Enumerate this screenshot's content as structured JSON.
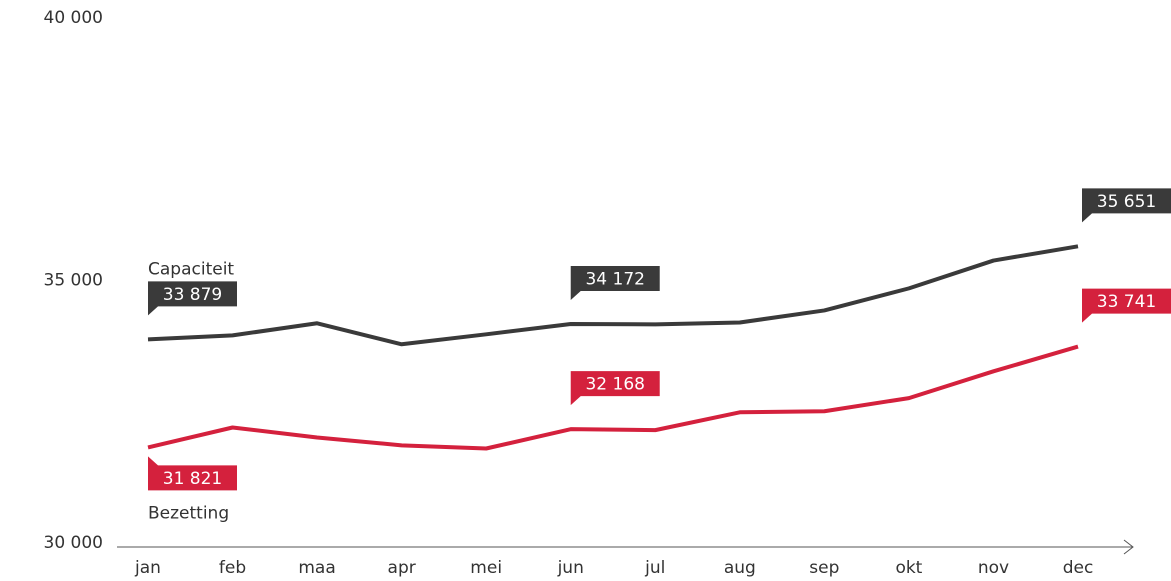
{
  "chart_data": {
    "type": "line",
    "categories": [
      "jan",
      "feb",
      "maa",
      "apr",
      "mei",
      "jun",
      "jul",
      "aug",
      "sep",
      "okt",
      "nov",
      "dec"
    ],
    "series": [
      {
        "name": "Capaciteit",
        "color": "#3a3a3a",
        "values": [
          33879,
          33955,
          34185,
          33785,
          33975,
          34172,
          34165,
          34200,
          34430,
          34850,
          35380,
          35651
        ],
        "value_labels": [
          "33 879",
          null,
          null,
          null,
          null,
          "34 172",
          null,
          null,
          null,
          null,
          null,
          "35 651"
        ]
      },
      {
        "name": "Bezetting",
        "color": "#d4213d",
        "values": [
          31821,
          32200,
          32010,
          31860,
          31800,
          32168,
          32150,
          32490,
          32510,
          32760,
          33270,
          33741
        ],
        "value_labels": [
          "31 821",
          null,
          null,
          null,
          null,
          "32 168",
          null,
          null,
          null,
          null,
          null,
          "33 741"
        ]
      }
    ],
    "ylim": [
      30000,
      40000
    ],
    "yticks": [
      {
        "value": 30000,
        "label": "30 000"
      },
      {
        "value": 35000,
        "label": "35 000"
      },
      {
        "value": 40000,
        "label": "40 000"
      }
    ]
  }
}
